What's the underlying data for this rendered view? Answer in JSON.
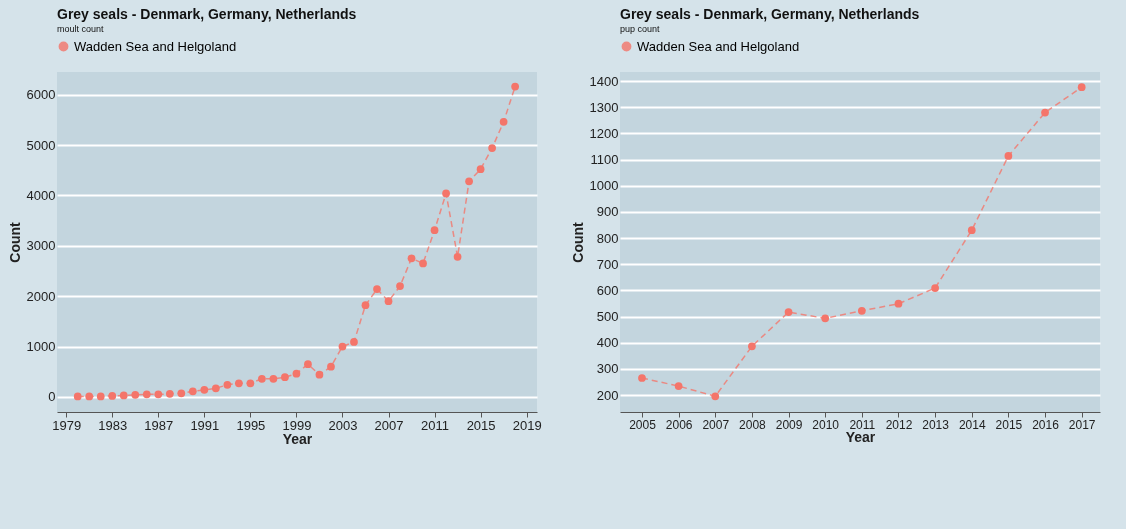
{
  "chart_data": [
    {
      "type": "line",
      "title": "Grey seals - Denmark, Germany, Netherlands",
      "subtitle": "moult count",
      "xlabel": "Year",
      "ylabel": "Count",
      "marker": "circle",
      "line_style": "dashed",
      "grid": "y",
      "legend": "top",
      "x": [
        1980,
        1981,
        1982,
        1983,
        1984,
        1985,
        1986,
        1987,
        1988,
        1989,
        1990,
        1991,
        1992,
        1993,
        1994,
        1995,
        1996,
        1997,
        1998,
        1999,
        2000,
        2001,
        2002,
        2003,
        2004,
        2005,
        2006,
        2007,
        2008,
        2009,
        2010,
        2011,
        2012,
        2013,
        2014,
        2015,
        2016,
        2017,
        2018
      ],
      "series": [
        {
          "name": "Wadden Sea and Helgoland",
          "color": "#f4756a",
          "values": [
            10,
            10,
            10,
            20,
            30,
            40,
            50,
            50,
            60,
            70,
            110,
            140,
            170,
            240,
            270,
            270,
            360,
            360,
            390,
            460,
            650,
            440,
            600,
            1000,
            1090,
            1820,
            2140,
            1900,
            2200,
            2750,
            2650,
            3310,
            4040,
            2780,
            4280,
            4520,
            4940,
            5460,
            6160
          ]
        }
      ],
      "xlim": [
        1978.2,
        2019.9
      ],
      "xticks": [
        1979,
        1983,
        1987,
        1991,
        1995,
        1999,
        2003,
        2007,
        2011,
        2015,
        2019
      ],
      "ylim": [
        -300,
        6450
      ],
      "yticks": [
        0,
        1000,
        2000,
        3000,
        4000,
        5000,
        6000
      ]
    },
    {
      "type": "line",
      "title": "Grey seals - Denmark, Germany, Netherlands",
      "subtitle": "pup count",
      "xlabel": "Year",
      "ylabel": "Count",
      "marker": "circle",
      "line_style": "dashed",
      "grid": "y",
      "legend": "top",
      "x": [
        2005,
        2006,
        2007,
        2008,
        2009,
        2010,
        2011,
        2012,
        2013,
        2014,
        2015,
        2016,
        2017
      ],
      "series": [
        {
          "name": "Wadden Sea and Helgoland",
          "color": "#f4756a",
          "values": [
            265,
            234,
            195,
            386,
            517,
            493,
            522,
            549,
            609,
            830,
            1114,
            1280,
            1377
          ]
        }
      ],
      "xlim": [
        2004.4,
        2017.5
      ],
      "xticks": [
        2005,
        2006,
        2007,
        2008,
        2009,
        2010,
        2011,
        2012,
        2013,
        2014,
        2015,
        2016,
        2017
      ],
      "ylim": [
        135,
        1435
      ],
      "yticks": [
        200,
        300,
        400,
        500,
        600,
        700,
        800,
        900,
        1000,
        1100,
        1200,
        1300,
        1400
      ]
    }
  ]
}
